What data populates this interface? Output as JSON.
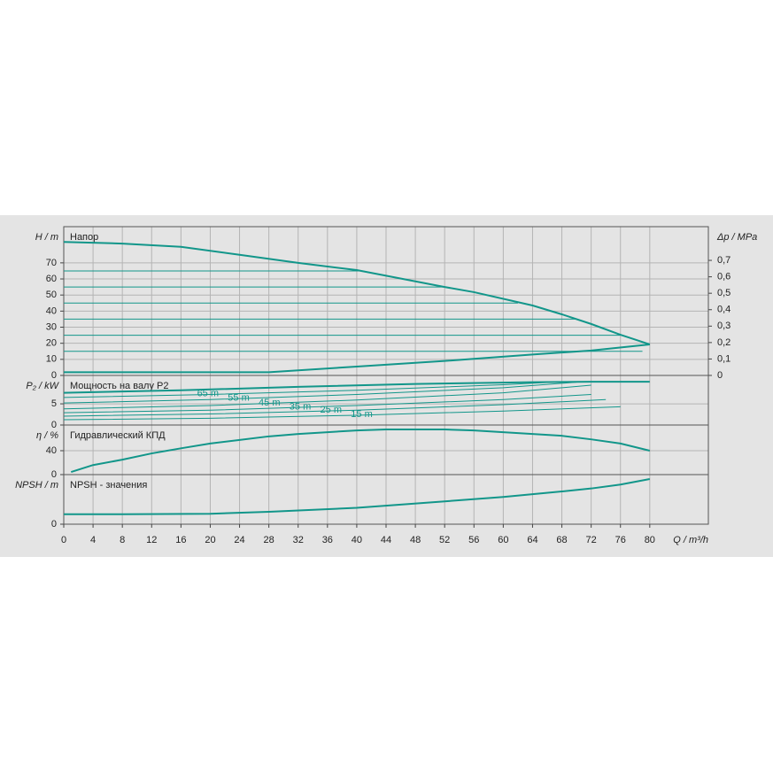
{
  "chart_data": [
    {
      "type": "line",
      "title": "Напор",
      "y_label": "H / m",
      "y2_label": "Δp / MPa",
      "ylim": [
        0,
        92.5
      ],
      "yticks": [
        0,
        10,
        20,
        30,
        40,
        50,
        60,
        70
      ],
      "y2lim": [
        0,
        0.905
      ],
      "y2ticks": [
        0,
        {
          "value": 0.1,
          "label": "0,1"
        },
        {
          "value": 0.2,
          "label": "0,2"
        },
        {
          "value": 0.3,
          "label": "0,3"
        },
        {
          "value": 0.4,
          "label": "0,4"
        },
        {
          "value": 0.5,
          "label": "0,5"
        },
        {
          "value": 0.6,
          "label": "0,6"
        },
        {
          "value": 0.7,
          "label": "0,7"
        }
      ],
      "series": [
        {
          "color": "#12968a",
          "linewidth": 2,
          "x": [
            0,
            8,
            16,
            24,
            32,
            40,
            48,
            52,
            56,
            64,
            68,
            72,
            76,
            80
          ],
          "values": [
            83,
            82,
            80,
            75,
            70,
            65.5,
            58.5,
            55,
            51.8,
            43.5,
            38,
            32,
            25.3,
            19.3
          ]
        },
        {
          "color": "#12968a",
          "linewidth": 2,
          "x": [
            0,
            28,
            40,
            52,
            64,
            72,
            80
          ],
          "values": [
            2,
            2,
            5.5,
            9,
            13,
            15.5,
            19.3
          ]
        },
        {
          "color": "#12968a",
          "linewidth": 1,
          "x": [
            0,
            41
          ],
          "values": [
            65,
            65
          ]
        },
        {
          "color": "#12968a",
          "linewidth": 1,
          "x": [
            0,
            52
          ],
          "values": [
            55,
            55
          ]
        },
        {
          "color": "#12968a",
          "linewidth": 1,
          "x": [
            0,
            62
          ],
          "values": [
            45,
            45
          ]
        },
        {
          "color": "#12968a",
          "linewidth": 1,
          "x": [
            0,
            70
          ],
          "values": [
            35,
            35
          ]
        },
        {
          "color": "#12968a",
          "linewidth": 1,
          "x": [
            0,
            76
          ],
          "values": [
            25,
            25
          ]
        },
        {
          "color": "#12968a",
          "linewidth": 1,
          "x": [
            0,
            79
          ],
          "values": [
            15,
            15
          ]
        }
      ]
    },
    {
      "type": "line",
      "title": "Мощность на валу P2",
      "y_label": "P₂ / kW",
      "ylim": [
        0,
        11.7
      ],
      "yticks": [
        0,
        5
      ],
      "series": [
        {
          "color": "#12968a",
          "linewidth": 2,
          "x": [
            0,
            16,
            32,
            48,
            64,
            72,
            76,
            80
          ],
          "values": [
            7.6,
            8.2,
            9.0,
            9.7,
            10.1,
            10.2,
            10.2,
            10.2
          ]
        },
        {
          "name": "65 m",
          "color": "#12968a",
          "linewidth": 1,
          "x": [
            0,
            20,
            40,
            60,
            68
          ],
          "values": [
            6.5,
            7.2,
            8.2,
            9.5,
            10.2
          ]
        },
        {
          "name": "55 m",
          "color": "#12968a",
          "linewidth": 1,
          "x": [
            0,
            20,
            40,
            60,
            70
          ],
          "values": [
            5.2,
            6.0,
            7.2,
            8.8,
            10.1
          ]
        },
        {
          "name": "45 m",
          "color": "#12968a",
          "linewidth": 1,
          "x": [
            0,
            20,
            40,
            60,
            72
          ],
          "values": [
            3.8,
            4.6,
            5.9,
            7.6,
            9.4
          ]
        },
        {
          "name": "35 m",
          "color": "#12968a",
          "linewidth": 1,
          "x": [
            0,
            20,
            40,
            60,
            72
          ],
          "values": [
            2.9,
            3.5,
            4.6,
            6.0,
            7.2
          ]
        },
        {
          "name": "25 m",
          "color": "#12968a",
          "linewidth": 1,
          "x": [
            0,
            20,
            40,
            60,
            74
          ],
          "values": [
            2.1,
            2.6,
            3.5,
            4.8,
            6.0
          ]
        },
        {
          "name": "15 m",
          "color": "#12968a",
          "linewidth": 1,
          "x": [
            0,
            20,
            40,
            60,
            76
          ],
          "values": [
            1.25,
            1.6,
            2.3,
            3.3,
            4.3
          ]
        }
      ]
    },
    {
      "type": "line",
      "title": "Гидравлический КПД",
      "y_label": "η / %",
      "ylim": [
        0,
        83
      ],
      "yticks": [
        0,
        40
      ],
      "series": [
        {
          "color": "#12968a",
          "linewidth": 2,
          "x": [
            1,
            4,
            8,
            12,
            16,
            20,
            24,
            28,
            32,
            36,
            40,
            44,
            48,
            52,
            56,
            60,
            64,
            68,
            72,
            76,
            80
          ],
          "values": [
            4.4,
            16,
            25,
            35.5,
            44,
            52,
            58,
            64,
            68,
            71,
            74,
            75.5,
            75.5,
            75.5,
            74,
            71,
            68,
            65,
            59,
            52,
            40
          ]
        }
      ]
    },
    {
      "type": "line",
      "title": "NPSH - значения",
      "y_label": "NPSH / m",
      "x_label": "Q / m³/h",
      "ylim": [
        0,
        10
      ],
      "yticks": [
        0
      ],
      "xlim": [
        0,
        88
      ],
      "xticks": [
        0,
        4,
        8,
        12,
        16,
        20,
        24,
        28,
        32,
        36,
        40,
        44,
        48,
        52,
        56,
        60,
        64,
        68,
        72,
        76,
        80
      ],
      "series": [
        {
          "color": "#12968a",
          "linewidth": 2,
          "x": [
            0,
            8,
            20,
            28,
            40,
            52,
            60,
            68,
            72,
            76,
            80
          ],
          "values": [
            2,
            2,
            2.1,
            2.5,
            3.3,
            4.6,
            5.5,
            6.6,
            7.2,
            8.0,
            9.1
          ]
        }
      ]
    }
  ]
}
